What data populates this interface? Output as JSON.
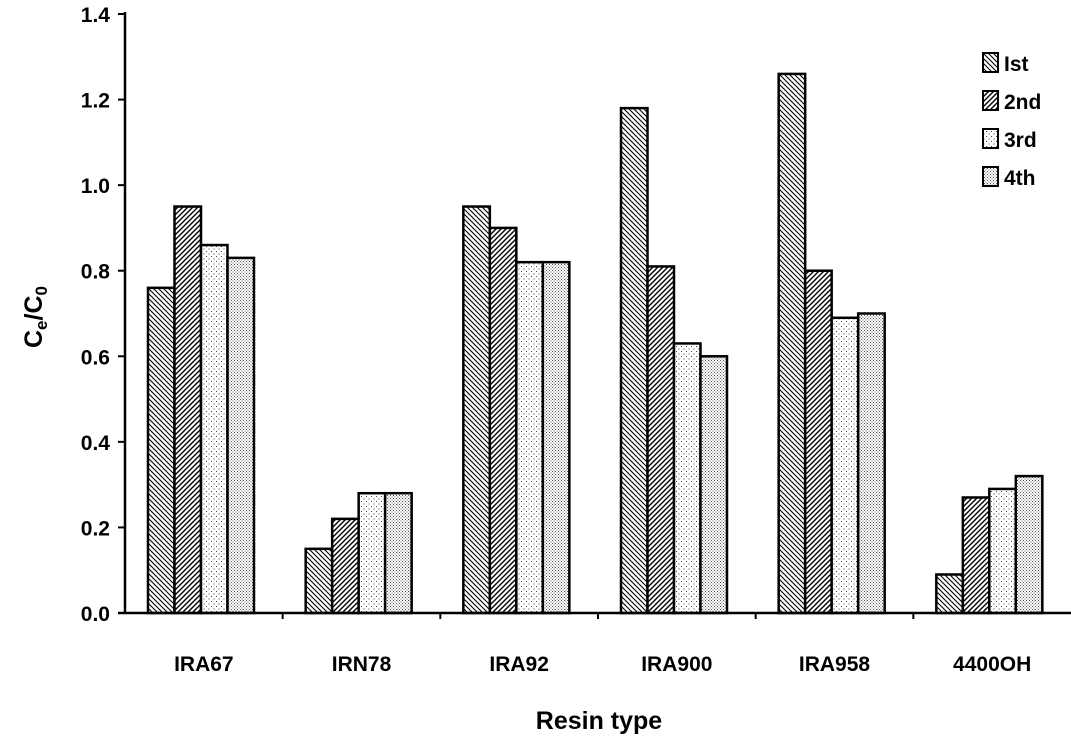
{
  "chart_data": {
    "type": "bar",
    "categories": [
      "IRA67",
      "IRN78",
      "IRA92",
      "IRA900",
      "IRA958",
      "4400OH"
    ],
    "series": [
      {
        "name": "Ist",
        "values": [
          0.76,
          0.15,
          0.95,
          1.18,
          1.26,
          0.09
        ],
        "pattern": "back-diagonal-dense"
      },
      {
        "name": "2nd",
        "values": [
          0.95,
          0.22,
          0.9,
          0.81,
          0.8,
          0.27
        ],
        "pattern": "forward-diagonal"
      },
      {
        "name": "3rd",
        "values": [
          0.86,
          0.28,
          0.82,
          0.63,
          0.69,
          0.29
        ],
        "pattern": "sparse-dots"
      },
      {
        "name": "4th",
        "values": [
          0.83,
          0.28,
          0.82,
          0.6,
          0.7,
          0.32
        ],
        "pattern": "dense-dots"
      }
    ],
    "title": "",
    "xlabel": "Resin type",
    "ylabel": {
      "main": "C",
      "sub1": "e",
      "mid": "/C",
      "sub2": "0"
    },
    "ylim": [
      0,
      1.4
    ],
    "yticks": [
      "0.0",
      "0.2",
      "0.4",
      "0.6",
      "0.8",
      "1.0",
      "1.2",
      "1.4"
    ],
    "grid": false,
    "legend_position": "top-right"
  }
}
